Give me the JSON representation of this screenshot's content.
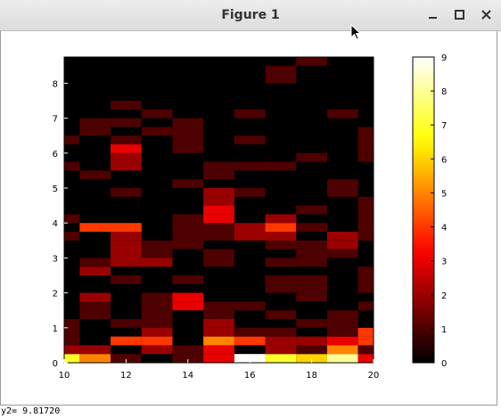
{
  "window": {
    "title": "Figure 1",
    "buttons": {
      "minimize": "minimize-icon",
      "maximize": "maximize-icon",
      "close": "close-icon"
    }
  },
  "status": {
    "text": "y2= 9.81720"
  },
  "chart_data": {
    "type": "heatmap",
    "colormap": "hot",
    "x_ticks": [
      "10",
      "12",
      "14",
      "16",
      "18",
      "20"
    ],
    "y_ticks": [
      "0",
      "1",
      "2",
      "3",
      "4",
      "5",
      "6",
      "7",
      "8"
    ],
    "colorbar_ticks": [
      "0",
      "1",
      "2",
      "3",
      "4",
      "5",
      "6",
      "7",
      "8",
      "9"
    ],
    "xlim": [
      10,
      20
    ],
    "ylim": [
      0,
      8.75
    ],
    "clim": [
      0,
      9
    ],
    "bin_width_x": 1,
    "bin_width_y": 0.25,
    "x_bins": [
      10,
      11,
      12,
      13,
      14,
      15,
      16,
      17,
      18,
      19,
      20
    ],
    "cells": [
      [
        10,
        0,
        7
      ],
      [
        10,
        0.25,
        2
      ],
      [
        10,
        0.5,
        1
      ],
      [
        10,
        0.75,
        1
      ],
      [
        10,
        1,
        1
      ],
      [
        10,
        3.5,
        1
      ],
      [
        10,
        4,
        1
      ],
      [
        10,
        5.5,
        1
      ],
      [
        10,
        6.25,
        1
      ],
      [
        11,
        0,
        5
      ],
      [
        11,
        0.25,
        2
      ],
      [
        11,
        1.25,
        1
      ],
      [
        11,
        1.5,
        1
      ],
      [
        11,
        1.75,
        2
      ],
      [
        11,
        2.5,
        2
      ],
      [
        11,
        2.75,
        1
      ],
      [
        11,
        3.75,
        4
      ],
      [
        11,
        5.25,
        1
      ],
      [
        11,
        6.5,
        1
      ],
      [
        11,
        6.75,
        1
      ],
      [
        12,
        0,
        1
      ],
      [
        12,
        0.5,
        4
      ],
      [
        12,
        1,
        1
      ],
      [
        12,
        2.25,
        1
      ],
      [
        12,
        2.75,
        2
      ],
      [
        12,
        3,
        2
      ],
      [
        12,
        3.25,
        2
      ],
      [
        12,
        3.5,
        2
      ],
      [
        12,
        3.75,
        4
      ],
      [
        12,
        4.75,
        1
      ],
      [
        12,
        5.5,
        2
      ],
      [
        12,
        5.75,
        2
      ],
      [
        12,
        6,
        3
      ],
      [
        12,
        6.25,
        1
      ],
      [
        12,
        6.75,
        1
      ],
      [
        12,
        7.25,
        1
      ],
      [
        13,
        0.25,
        2
      ],
      [
        13,
        0.5,
        4
      ],
      [
        13,
        0.75,
        2
      ],
      [
        13,
        1,
        1
      ],
      [
        13,
        1.25,
        1
      ],
      [
        13,
        1.5,
        1
      ],
      [
        13,
        1.75,
        1
      ],
      [
        13,
        2.75,
        2
      ],
      [
        13,
        3,
        1
      ],
      [
        13,
        3.25,
        1
      ],
      [
        13,
        6.5,
        1
      ],
      [
        13,
        7,
        1
      ],
      [
        14,
        0,
        1
      ],
      [
        14,
        0.25,
        1
      ],
      [
        14,
        1.5,
        3
      ],
      [
        14,
        1.75,
        3
      ],
      [
        14,
        2.25,
        1
      ],
      [
        14,
        3.25,
        1
      ],
      [
        14,
        3.5,
        1
      ],
      [
        14,
        3.75,
        1
      ],
      [
        14,
        4,
        1
      ],
      [
        14,
        5,
        1
      ],
      [
        14,
        6,
        1
      ],
      [
        14,
        6.25,
        1
      ],
      [
        14,
        6.5,
        1
      ],
      [
        14,
        6.75,
        1
      ],
      [
        15,
        0,
        3
      ],
      [
        15,
        0.25,
        3
      ],
      [
        15,
        0.5,
        5
      ],
      [
        15,
        0.75,
        2
      ],
      [
        15,
        1,
        2
      ],
      [
        15,
        1.25,
        1
      ],
      [
        15,
        1.5,
        1
      ],
      [
        15,
        2.75,
        1
      ],
      [
        15,
        3,
        1
      ],
      [
        15,
        3.5,
        1
      ],
      [
        15,
        3.75,
        1
      ],
      [
        15,
        4,
        3
      ],
      [
        15,
        4.25,
        3
      ],
      [
        15,
        4.5,
        2
      ],
      [
        15,
        4.75,
        2
      ],
      [
        15,
        5.25,
        1
      ],
      [
        15,
        5.5,
        1
      ],
      [
        16,
        0,
        9
      ],
      [
        16,
        0.5,
        4
      ],
      [
        16,
        0.75,
        1
      ],
      [
        16,
        1.5,
        1
      ],
      [
        16,
        3.5,
        2
      ],
      [
        16,
        3.75,
        2
      ],
      [
        16,
        4.75,
        1
      ],
      [
        16,
        5.5,
        1
      ],
      [
        16,
        6.25,
        1
      ],
      [
        16,
        7,
        1
      ],
      [
        17,
        0,
        7
      ],
      [
        17,
        0.25,
        2
      ],
      [
        17,
        0.5,
        2
      ],
      [
        17,
        0.75,
        1
      ],
      [
        17,
        1.25,
        1
      ],
      [
        17,
        2,
        1
      ],
      [
        17,
        2.25,
        1
      ],
      [
        17,
        2.75,
        1
      ],
      [
        17,
        3.25,
        1
      ],
      [
        17,
        3.5,
        2
      ],
      [
        17,
        3.75,
        4
      ],
      [
        17,
        4,
        2
      ],
      [
        17,
        5.5,
        1
      ],
      [
        17,
        8,
        1
      ],
      [
        17,
        8.25,
        1
      ],
      [
        18,
        0,
        6
      ],
      [
        18,
        0.25,
        1
      ],
      [
        18,
        0.5,
        2
      ],
      [
        18,
        1,
        1
      ],
      [
        18,
        1.75,
        1
      ],
      [
        18,
        2,
        1
      ],
      [
        18,
        2.25,
        1
      ],
      [
        18,
        2.75,
        1
      ],
      [
        18,
        3,
        1
      ],
      [
        18,
        3.25,
        1
      ],
      [
        18,
        3.75,
        1
      ],
      [
        18,
        4.25,
        1
      ],
      [
        18,
        5.75,
        1
      ],
      [
        18,
        8.5,
        1
      ],
      [
        19,
        0,
        8
      ],
      [
        19,
        0.25,
        5
      ],
      [
        19,
        0.5,
        3
      ],
      [
        19,
        0.75,
        1
      ],
      [
        19,
        1,
        1
      ],
      [
        19,
        1.25,
        1
      ],
      [
        19,
        3,
        1
      ],
      [
        19,
        3.25,
        2
      ],
      [
        19,
        3.5,
        2
      ],
      [
        19,
        4.75,
        1
      ],
      [
        19,
        5,
        1
      ],
      [
        19,
        7,
        1
      ],
      [
        20,
        0,
        3
      ],
      [
        20,
        0.25,
        1
      ],
      [
        20,
        0.5,
        4
      ],
      [
        20,
        0.75,
        4
      ],
      [
        20,
        1.5,
        1
      ],
      [
        20,
        2,
        1
      ],
      [
        20,
        2.25,
        1
      ],
      [
        20,
        2.5,
        1
      ],
      [
        20,
        3.5,
        1
      ],
      [
        20,
        3.75,
        1
      ],
      [
        20,
        4,
        1
      ],
      [
        20,
        4.25,
        1
      ],
      [
        20,
        4.5,
        1
      ],
      [
        20,
        5.75,
        1
      ],
      [
        20,
        6,
        1
      ],
      [
        20,
        6.25,
        1
      ],
      [
        20,
        6.5,
        1
      ]
    ]
  }
}
